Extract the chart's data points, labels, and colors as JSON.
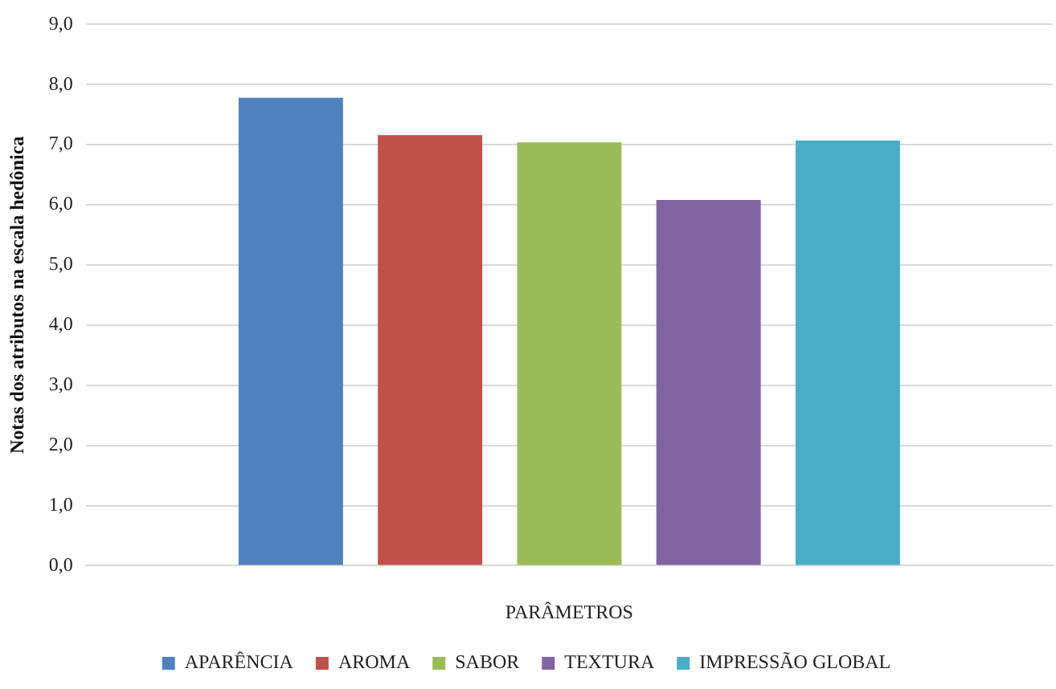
{
  "chart_data": {
    "type": "bar",
    "xlabel": "PARÂMETROS",
    "ylabel": "Notas dos atributos na escala hedônica",
    "categories": [
      null
    ],
    "series": [
      {
        "name": "APARÊNCIA",
        "color": "#4f81bd",
        "values": [
          7.78
        ]
      },
      {
        "name": "AROMA",
        "color": "#c0504d",
        "values": [
          7.16
        ]
      },
      {
        "name": "SABOR",
        "color": "#9bbb59",
        "values": [
          7.04
        ]
      },
      {
        "name": "TEXTURA",
        "color": "#8064a2",
        "values": [
          6.08
        ]
      },
      {
        "name": "IMPRESSÃO GLOBAL",
        "color": "#4bacc6",
        "values": [
          7.07
        ]
      }
    ],
    "ylim": [
      0,
      9
    ],
    "yticks": [
      {
        "value": 0,
        "label": "0,0"
      },
      {
        "value": 1,
        "label": "1,0"
      },
      {
        "value": 2,
        "label": "2,0"
      },
      {
        "value": 3,
        "label": "3,0"
      },
      {
        "value": 4,
        "label": "4,0"
      },
      {
        "value": 5,
        "label": "5,0"
      },
      {
        "value": 6,
        "label": "6,0"
      },
      {
        "value": 7,
        "label": "7,0"
      },
      {
        "value": 8,
        "label": "8,0"
      },
      {
        "value": 9,
        "label": "9,0"
      }
    ],
    "grid": "y",
    "legend": "bottom"
  }
}
